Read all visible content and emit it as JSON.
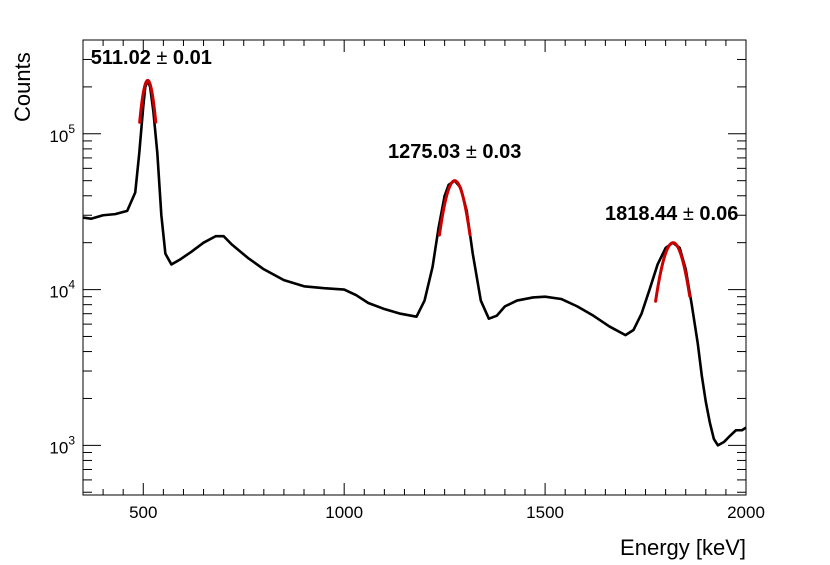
{
  "chart_data": {
    "type": "line",
    "xlabel": "Energy [keV]",
    "ylabel": "Counts",
    "xlim": [
      350,
      2000
    ],
    "ylim": [
      480,
      400000
    ],
    "y_scale": "log",
    "grid": false,
    "x_ticks": [
      {
        "value": 500,
        "label": "500"
      },
      {
        "value": 1000,
        "label": "1000"
      },
      {
        "value": 1500,
        "label": "1500"
      },
      {
        "value": 2000,
        "label": "2000"
      }
    ],
    "y_ticks": [
      {
        "value": 1000,
        "base": "10",
        "exp": "3"
      },
      {
        "value": 10000,
        "base": "10",
        "exp": "4"
      },
      {
        "value": 100000,
        "base": "10",
        "exp": "5"
      }
    ],
    "series": [
      {
        "style": "spectrum",
        "color": "#000000",
        "x": [
          350,
          370,
          400,
          430,
          460,
          480,
          490,
          500,
          505,
          511,
          517,
          525,
          535,
          545,
          555,
          570,
          590,
          620,
          650,
          680,
          700,
          720,
          760,
          800,
          850,
          900,
          950,
          1000,
          1030,
          1060,
          1100,
          1140,
          1180,
          1200,
          1220,
          1235,
          1250,
          1260,
          1275,
          1290,
          1305,
          1320,
          1340,
          1360,
          1380,
          1400,
          1430,
          1470,
          1500,
          1540,
          1580,
          1620,
          1660,
          1700,
          1720,
          1740,
          1760,
          1780,
          1800,
          1818,
          1835,
          1850,
          1865,
          1880,
          1890,
          1900,
          1910,
          1920,
          1930,
          1945,
          1960,
          1975,
          1990,
          2000
        ],
        "y": [
          29000,
          28500,
          30000,
          30500,
          32000,
          42000,
          75000,
          150000,
          200000,
          220000,
          200000,
          140000,
          75000,
          30000,
          17000,
          14500,
          15500,
          17500,
          20000,
          22000,
          22000,
          19500,
          16000,
          13500,
          11500,
          10500,
          10200,
          10000,
          9200,
          8200,
          7500,
          7000,
          6700,
          8500,
          14000,
          25000,
          40000,
          47000,
          50000,
          45000,
          32000,
          17000,
          8500,
          6500,
          6800,
          7800,
          8500,
          8900,
          9000,
          8700,
          7800,
          6800,
          5800,
          5100,
          5500,
          7000,
          10000,
          14500,
          18500,
          20000,
          18500,
          13500,
          8000,
          4500,
          2800,
          1900,
          1400,
          1100,
          1000,
          1050,
          1150,
          1250,
          1250,
          1300
        ]
      },
      {
        "style": "fit",
        "color": "#cc0000",
        "peaks": [
          {
            "center": 511.02,
            "error": 0.01,
            "amplitude": 220000,
            "sigma": 18,
            "range": [
              491,
              531
            ]
          },
          {
            "center": 1275.03,
            "error": 0.03,
            "amplitude": 50000,
            "sigma": 30,
            "range": [
              1237,
              1313
            ]
          },
          {
            "center": 1818.44,
            "error": 0.06,
            "amplitude": 20000,
            "sigma": 33,
            "range": [
              1775,
              1860
            ]
          }
        ]
      }
    ],
    "annotations": [
      {
        "value": "511.02",
        "pm": "±",
        "error": "0.01",
        "x": 520,
        "y": 280000
      },
      {
        "value": "1275.03",
        "pm": "±",
        "error": "0.03",
        "x": 1275,
        "y": 70000
      },
      {
        "value": "1818.44",
        "pm": "±",
        "error": "0.06",
        "x": 1815,
        "y": 28000
      }
    ]
  }
}
